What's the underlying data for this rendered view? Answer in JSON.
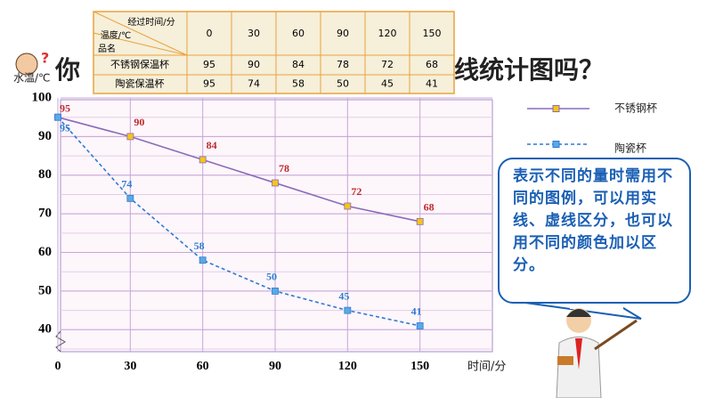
{
  "heading_left": "你",
  "heading_right": "线统计图吗？",
  "table": {
    "header_time": "经过时间/分",
    "header_temp": "温度/℃",
    "header_name": "品名",
    "columns": [
      0,
      30,
      60,
      90,
      120,
      150
    ],
    "rows": [
      {
        "name": "不锈钢保温杯",
        "values": [
          95,
          90,
          84,
          78,
          72,
          68
        ]
      },
      {
        "name": "陶瓷保温杯",
        "values": [
          95,
          74,
          58,
          50,
          45,
          41
        ]
      }
    ]
  },
  "chart_data": {
    "type": "line",
    "y_label": "水温/℃",
    "x_label": "时间/分",
    "x": [
      0,
      30,
      60,
      90,
      120,
      150
    ],
    "xlim": [
      0,
      180
    ],
    "xticks": [
      0,
      30,
      60,
      90,
      120,
      150
    ],
    "ylim": [
      35,
      100
    ],
    "yticks": [
      40,
      50,
      60,
      70,
      80,
      90,
      100
    ],
    "grid": true,
    "series": [
      {
        "name": "不锈钢杯",
        "color": "#8a6bb8",
        "marker_color": "#f5c518",
        "label_color": "#c0282d",
        "dashed": false,
        "values": [
          95,
          90,
          84,
          78,
          72,
          68
        ]
      },
      {
        "name": "陶瓷杯",
        "color": "#2f7bd0",
        "marker_color": "#5aa9e6",
        "label_color": "#2f7bd0",
        "dashed": true,
        "values": [
          95,
          74,
          58,
          50,
          45,
          41
        ]
      }
    ]
  },
  "note": "表示不同的量时需用不同的图例，可以用实线、虚线区分，也可以用不同的颜色加以区分。"
}
